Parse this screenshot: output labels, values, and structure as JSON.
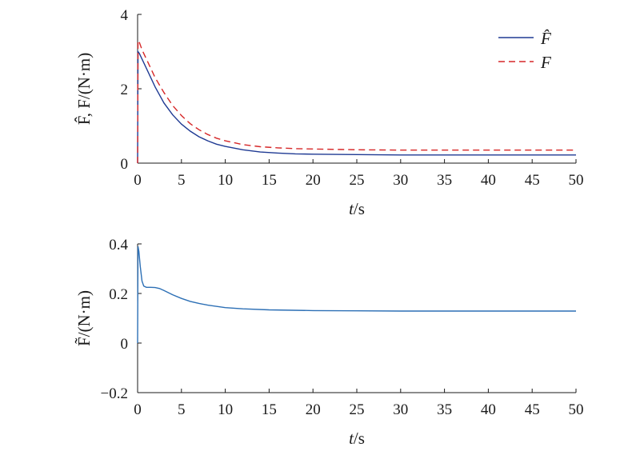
{
  "chart_data": [
    {
      "type": "line",
      "xlabel": "t/s",
      "ylabel": "F̂, F/(N·m)",
      "xlim": [
        0,
        50
      ],
      "ylim": [
        0,
        4
      ],
      "xticks": [
        "0",
        "5",
        "10",
        "15",
        "20",
        "25",
        "30",
        "35",
        "40",
        "45",
        "50"
      ],
      "yticks": [
        "0",
        "2",
        "4"
      ],
      "legend_position": "top-right",
      "series": [
        {
          "name": "F̂",
          "color": "#1f3a93",
          "dash": "solid",
          "x": [
            0,
            0.05,
            0.2,
            0.5,
            1,
            2,
            3,
            4,
            5,
            6,
            7,
            8,
            9,
            10,
            12,
            14,
            16,
            18,
            20,
            25,
            30,
            35,
            40,
            45,
            50
          ],
          "y": [
            0,
            3.0,
            2.95,
            2.8,
            2.55,
            2.05,
            1.62,
            1.3,
            1.05,
            0.86,
            0.71,
            0.6,
            0.51,
            0.45,
            0.36,
            0.3,
            0.27,
            0.25,
            0.24,
            0.23,
            0.22,
            0.22,
            0.22,
            0.22,
            0.22
          ]
        },
        {
          "name": "F",
          "color": "#d62728",
          "dash": "dashed",
          "x": [
            0,
            0.05,
            0.2,
            0.5,
            1,
            2,
            3,
            4,
            5,
            6,
            7,
            8,
            9,
            10,
            12,
            14,
            16,
            18,
            20,
            25,
            30,
            35,
            40,
            45,
            50
          ],
          "y": [
            0,
            3.3,
            3.25,
            3.05,
            2.8,
            2.3,
            1.9,
            1.55,
            1.28,
            1.06,
            0.9,
            0.77,
            0.67,
            0.6,
            0.5,
            0.44,
            0.41,
            0.39,
            0.38,
            0.36,
            0.35,
            0.35,
            0.35,
            0.35,
            0.35
          ]
        }
      ]
    },
    {
      "type": "line",
      "xlabel": "t/s",
      "ylabel": "F̃/(N·m)",
      "xlim": [
        0,
        50
      ],
      "ylim": [
        -0.2,
        0.4
      ],
      "xticks": [
        "0",
        "5",
        "10",
        "15",
        "20",
        "25",
        "30",
        "35",
        "40",
        "45",
        "50"
      ],
      "yticks": [
        "−0.2",
        "0",
        "0.2",
        "0.4"
      ],
      "series": [
        {
          "name": "",
          "color": "#2c6fb5",
          "dash": "solid",
          "x": [
            0,
            0.05,
            0.15,
            0.3,
            0.5,
            0.7,
            1,
            1.5,
            2,
            2.5,
            3,
            4,
            5,
            6,
            7,
            8,
            10,
            12,
            15,
            20,
            25,
            30,
            35,
            40,
            45,
            50
          ],
          "y": [
            0,
            0.39,
            0.37,
            0.31,
            0.25,
            0.23,
            0.225,
            0.225,
            0.224,
            0.22,
            0.212,
            0.195,
            0.18,
            0.168,
            0.16,
            0.153,
            0.143,
            0.138,
            0.134,
            0.131,
            0.13,
            0.129,
            0.129,
            0.129,
            0.129,
            0.129
          ]
        }
      ]
    }
  ]
}
